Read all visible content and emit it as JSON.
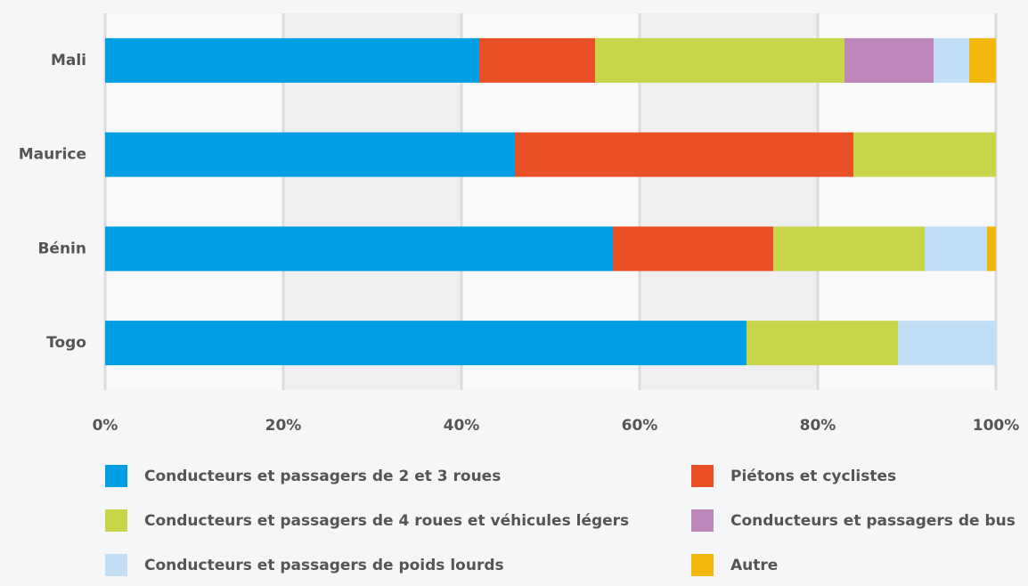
{
  "chart_data": {
    "type": "stacked-bar-horizontal",
    "categories": [
      "Mali",
      "Maurice",
      "Bénin",
      "Togo"
    ],
    "series": [
      {
        "name": "Conducteurs et passagers de 2 et 3 roues",
        "color": "#009fe3",
        "values": [
          42,
          46,
          57,
          72
        ]
      },
      {
        "name": "Piétons et cyclistes",
        "color": "#ea5026",
        "values": [
          13,
          38,
          18,
          0
        ]
      },
      {
        "name": "Conducteurs et passagers de 4 roues et véhicules légers",
        "color": "#c8d44a",
        "values": [
          28,
          16,
          17,
          17
        ]
      },
      {
        "name": "Conducteurs et passagers de bus",
        "color": "#bf86bb",
        "values": [
          10,
          0,
          0,
          0
        ]
      },
      {
        "name": "Conducteurs et passagers de poids lourds",
        "color": "#c1def5",
        "values": [
          4,
          0,
          7,
          11
        ]
      },
      {
        "name": "Autre",
        "color": "#f2b70b",
        "values": [
          3,
          0,
          1,
          0
        ]
      }
    ],
    "xlim": [
      0,
      100
    ],
    "xticks": [
      {
        "value": 0,
        "label": "0%"
      },
      {
        "value": 20,
        "label": "20%"
      },
      {
        "value": 40,
        "label": "40%"
      },
      {
        "value": 60,
        "label": "60%"
      },
      {
        "value": 80,
        "label": "80%"
      },
      {
        "value": 100,
        "label": "100%"
      }
    ],
    "grid": true,
    "legend": "bottom"
  }
}
